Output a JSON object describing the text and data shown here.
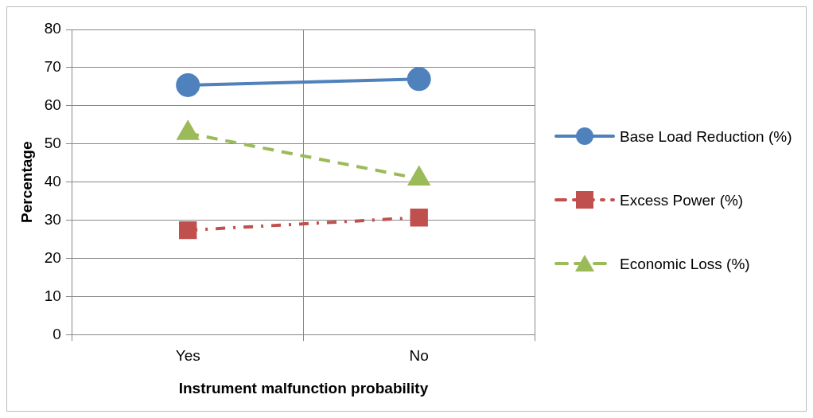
{
  "chart_data": {
    "type": "line",
    "xlabel": "Instrument malfunction probability",
    "ylabel": "Percentage",
    "categories": [
      "Yes",
      "No"
    ],
    "series": [
      {
        "name": "Base Load Reduction (%)",
        "color": "#4f81bd",
        "values": [
          65.4,
          67.0
        ],
        "marker": "circle",
        "line_style": "solid"
      },
      {
        "name": "Excess Power (%)",
        "color": "#c0504d",
        "values": [
          27.4,
          30.7
        ],
        "marker": "square",
        "line_style": "dotted"
      },
      {
        "name": "Economic Loss (%)",
        "color": "#9bbb59",
        "values": [
          52.8,
          40.9
        ],
        "marker": "triangle",
        "line_style": "dashed"
      }
    ],
    "ylim": [
      0,
      80
    ],
    "yticks": [
      0,
      10,
      20,
      30,
      40,
      50,
      60,
      70,
      80
    ],
    "grid": true,
    "legend": "right"
  }
}
